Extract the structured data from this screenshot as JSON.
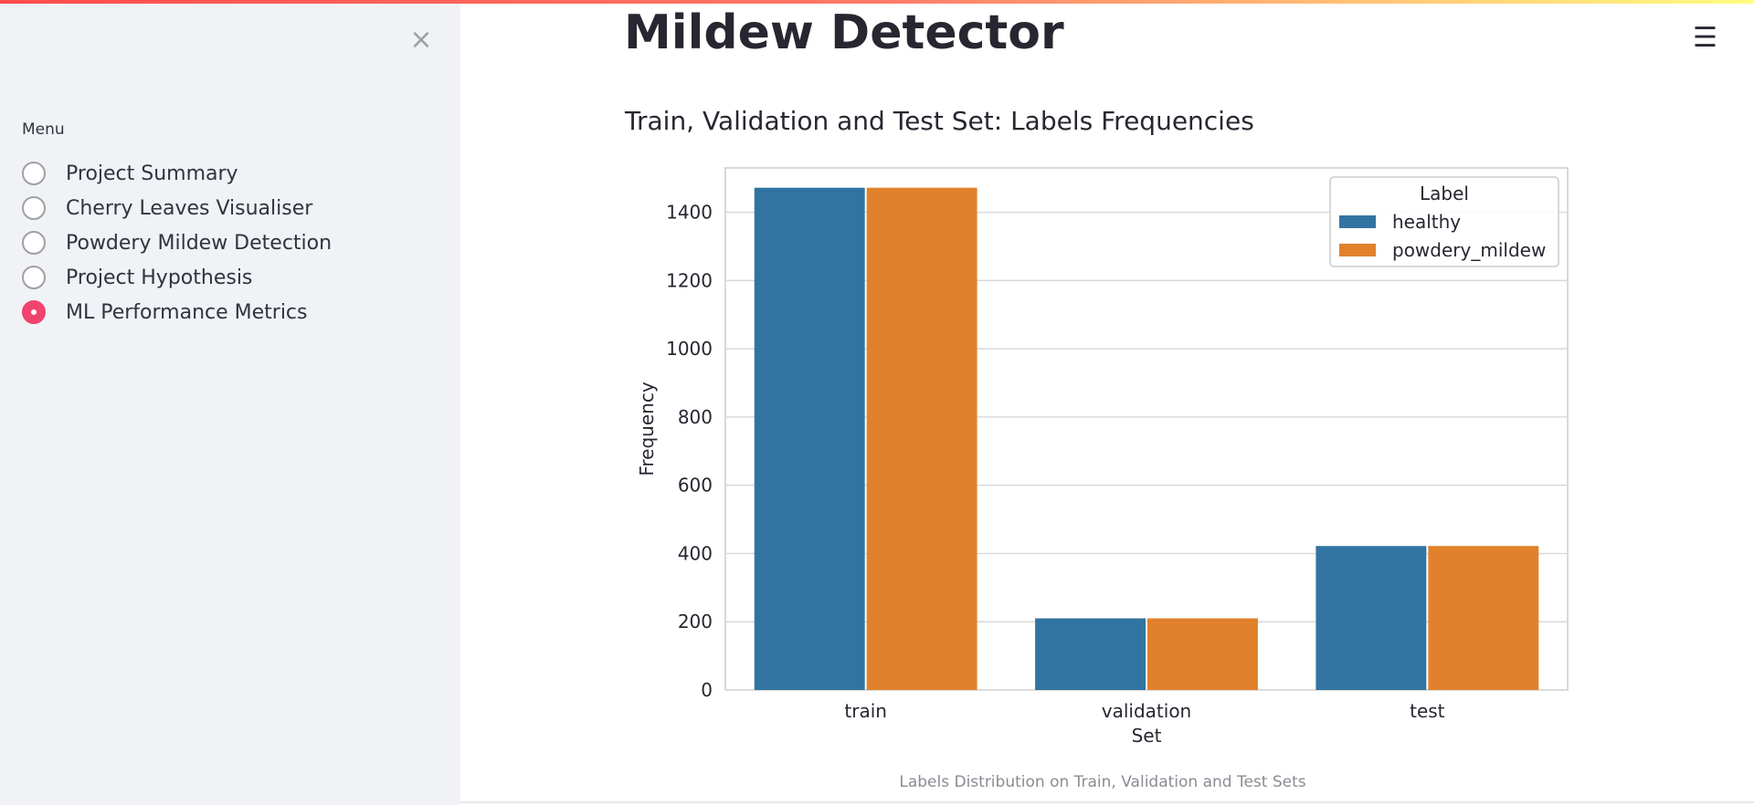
{
  "sidebar": {
    "close_icon": "close-icon",
    "menu_label": "Menu",
    "items": [
      {
        "label": "Project Summary",
        "selected": false
      },
      {
        "label": "Cherry Leaves Visualiser",
        "selected": false
      },
      {
        "label": "Powdery Mildew Detection",
        "selected": false
      },
      {
        "label": "Project Hypothesis",
        "selected": false
      },
      {
        "label": "ML Performance Metrics",
        "selected": true
      }
    ]
  },
  "header": {
    "title": "Mildew Detector",
    "menu_icon": "hamburger-menu-icon"
  },
  "main": {
    "subheader": "Train, Validation and Test Set: Labels Frequencies",
    "caption": "Labels Distribution on Train, Validation and Test Sets"
  },
  "colors": {
    "accent": "#f0436d",
    "healthy": "#3274a1",
    "powdery_mildew": "#e1812c"
  },
  "chart_data": {
    "type": "bar",
    "categories": [
      "train",
      "validation",
      "test"
    ],
    "series": [
      {
        "name": "healthy",
        "values": [
          1472,
          210,
          422
        ]
      },
      {
        "name": "powdery_mildew",
        "values": [
          1472,
          210,
          422
        ]
      }
    ],
    "xlabel": "Set",
    "ylabel": "Frequency",
    "ylim": [
      0,
      1530
    ],
    "yticks": [
      0,
      200,
      400,
      600,
      800,
      1000,
      1200,
      1400
    ],
    "legend_title": "Label",
    "legend_position": "top-right",
    "grid": true
  }
}
